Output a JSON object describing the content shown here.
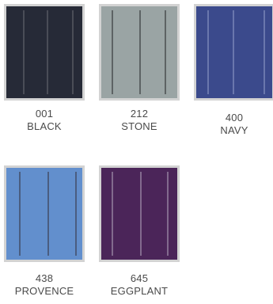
{
  "swatches": [
    {
      "code": "001",
      "name": "BLACK",
      "color": "#262a37",
      "stripe_color": "#4a4d57"
    },
    {
      "code": "212",
      "name": "STONE",
      "color": "#9aa4a4",
      "stripe_color": "#5d6364"
    },
    {
      "code": "400",
      "name": "NAVY",
      "color": "#3b4a8c",
      "stripe_color": "#6a77ad"
    },
    {
      "code": "438",
      "name": "PROVENCE",
      "color": "#628fcd",
      "stripe_color": "#4a5d80"
    },
    {
      "code": "645",
      "name": "EGGPLANT",
      "color": "#4b2559",
      "stripe_color": "#826a8e"
    }
  ],
  "frame_color": "#d3d3d3",
  "text_color": "#4a4a4a"
}
